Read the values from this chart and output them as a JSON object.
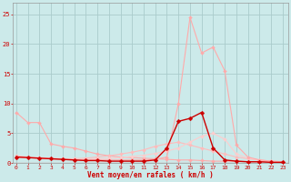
{
  "xlabel": "Vent moyen/en rafales ( km/h )",
  "bg_color": "#cceaea",
  "grid_color": "#aacccc",
  "x_ticks": [
    0,
    1,
    2,
    3,
    4,
    5,
    6,
    7,
    8,
    9,
    10,
    11,
    12,
    13,
    14,
    15,
    16,
    17,
    18,
    19,
    20,
    21,
    22,
    23
  ],
  "y_ticks": [
    0,
    5,
    10,
    15,
    20,
    25
  ],
  "xlim": [
    -0.3,
    23.5
  ],
  "ylim": [
    0,
    27
  ],
  "lines": [
    {
      "name": "rafales_light1",
      "x": [
        0,
        1,
        2,
        3,
        4,
        5,
        6,
        7,
        8,
        9,
        10,
        11,
        12,
        13,
        14,
        15,
        16,
        17,
        18,
        19,
        20,
        21,
        22,
        23
      ],
      "y": [
        8.5,
        6.8,
        6.8,
        3.2,
        2.8,
        2.5,
        2.0,
        1.5,
        1.2,
        1.0,
        0.9,
        0.8,
        0.7,
        0.6,
        0.5,
        0.5,
        0.4,
        0.3,
        0.3,
        0.3,
        0.2,
        0.2,
        0.2,
        0.1
      ],
      "color": "#ffaaaa",
      "linewidth": 0.8,
      "markersize": 2.0,
      "zorder": 2
    },
    {
      "name": "rafales_med1",
      "x": [
        0,
        1,
        2,
        3,
        4,
        5,
        6,
        7,
        8,
        9,
        10,
        11,
        12,
        13,
        14,
        15,
        16,
        17,
        18,
        19,
        20,
        21,
        22,
        23
      ],
      "y": [
        1.2,
        1.0,
        0.9,
        0.8,
        0.7,
        0.7,
        0.8,
        1.0,
        1.2,
        1.5,
        1.8,
        2.2,
        2.8,
        3.2,
        3.5,
        3.0,
        2.5,
        2.0,
        1.5,
        1.0,
        0.7,
        0.5,
        0.3,
        0.2
      ],
      "color": "#ffbbbb",
      "linewidth": 0.8,
      "markersize": 2.0,
      "zorder": 3
    },
    {
      "name": "rafales_med2",
      "x": [
        0,
        1,
        2,
        3,
        4,
        5,
        6,
        7,
        8,
        9,
        10,
        11,
        12,
        13,
        14,
        15,
        16,
        17,
        18,
        19,
        20,
        21,
        22,
        23
      ],
      "y": [
        1.0,
        0.9,
        0.8,
        0.7,
        0.6,
        0.6,
        0.6,
        0.7,
        0.8,
        0.9,
        1.1,
        1.3,
        1.6,
        2.0,
        2.5,
        3.5,
        4.5,
        5.0,
        4.0,
        1.5,
        0.8,
        0.5,
        0.3,
        0.2
      ],
      "color": "#ffcccc",
      "linewidth": 0.8,
      "markersize": 2.0,
      "zorder": 4
    },
    {
      "name": "rafales_peak",
      "x": [
        0,
        1,
        2,
        3,
        4,
        5,
        6,
        7,
        8,
        9,
        10,
        11,
        12,
        13,
        14,
        15,
        16,
        17,
        18,
        19,
        20,
        21,
        22,
        23
      ],
      "y": [
        1.0,
        0.9,
        0.8,
        0.7,
        0.6,
        0.5,
        0.5,
        0.5,
        0.5,
        0.5,
        0.5,
        0.5,
        0.6,
        1.0,
        10.0,
        24.5,
        18.5,
        19.5,
        15.5,
        3.0,
        1.0,
        0.5,
        0.3,
        0.2
      ],
      "color": "#ffaaaa",
      "linewidth": 0.8,
      "markersize": 2.0,
      "zorder": 5
    },
    {
      "name": "moyen",
      "x": [
        0,
        1,
        2,
        3,
        4,
        5,
        6,
        7,
        8,
        9,
        10,
        11,
        12,
        13,
        14,
        15,
        16,
        17,
        18,
        19,
        20,
        21,
        22,
        23
      ],
      "y": [
        1.0,
        0.9,
        0.8,
        0.7,
        0.6,
        0.5,
        0.4,
        0.4,
        0.3,
        0.3,
        0.3,
        0.3,
        0.5,
        2.5,
        7.0,
        7.5,
        8.5,
        2.5,
        0.5,
        0.3,
        0.2,
        0.2,
        0.1,
        0.1
      ],
      "color": "#cc0000",
      "linewidth": 1.0,
      "markersize": 2.5,
      "zorder": 6
    }
  ]
}
